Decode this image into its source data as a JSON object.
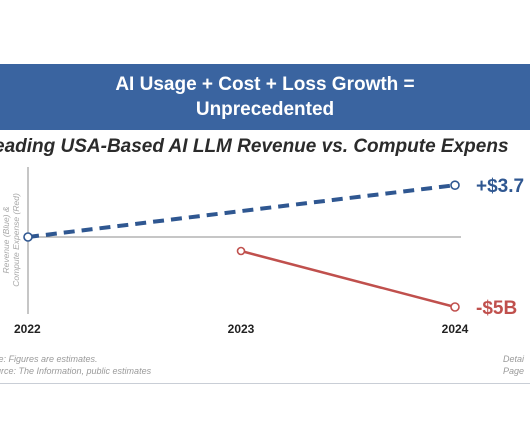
{
  "title_line1": "AI Usage + Cost + Loss Growth =",
  "title_line2": "Unprecedented",
  "subtitle": "eading USA-Based AI LLM Revenue vs. Compute Expens",
  "notes": {
    "note_line": "te: Figures are estimates.",
    "source_line": "urce: The Information, public estimates",
    "right_line1": "Detai",
    "right_line2": "Page"
  },
  "colors": {
    "banner": "#3a64a0",
    "revenue": "#2f5791",
    "expense": "#c0504d",
    "axis": "#8c8c8c"
  },
  "chart_data": {
    "type": "line",
    "title": "eading USA-Based AI LLM Revenue vs. Compute Expens",
    "ylabel": "Revenue (Blue) & Compute Expense (Red)",
    "categories": [
      "2022",
      "2023",
      "2024"
    ],
    "series": [
      {
        "key": "revenue",
        "values": [
          0,
          1.85,
          3.7
        ],
        "style": "dashed",
        "color": "#2f5791",
        "end_label": "+$3.7"
      },
      {
        "key": "expense",
        "values": [
          null,
          -1,
          -5
        ],
        "style": "solid",
        "color": "#c0504d",
        "end_label": "-$5B"
      }
    ],
    "ylim": [
      -6,
      6
    ],
    "grid": false,
    "baseline": 0
  }
}
